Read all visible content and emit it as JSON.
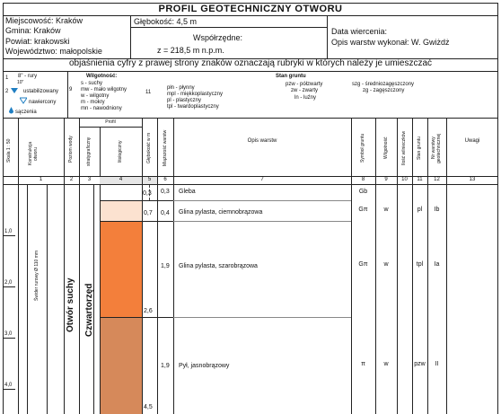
{
  "header": {
    "title": "PROFIL GEOTECHNICZNY OTWORU",
    "location": "Miejscowość: Kraków",
    "municipality": "Gmina: Kraków",
    "district": "Powiat: krakowski",
    "province": "Województwo: małopolskie",
    "depth": "Głębokość: 4,5 m",
    "coords_label": "Współrzędne:",
    "elevation": "z = 218,5 m n.p.m.",
    "date_label": "Data wiercenia:",
    "author": "Opis warstw wykonał: W. Gwiżdż"
  },
  "explanation": {
    "banner": "objaśnienia cyfry z prawej strony znaków oznaczają rubryki w których należy je umieszczać",
    "col1": [
      "1",
      "8\" - rury",
      "10\"",
      "2",
      "ustabilizowany",
      "nawiercony",
      "sączenia"
    ],
    "moisture_title": "Wilgotność:",
    "moisture_num": "9",
    "moisture": [
      "s - suchy",
      "mw - mało wilgotny",
      "w - wilgotny",
      "m - mokry",
      "mn - nawodniony"
    ],
    "state_num": "11",
    "state": [
      "płn - płynny",
      "mpl - miękkoplastyczny",
      "pl - plastyczny",
      "tpl - twardoplastyczny"
    ],
    "soil_state_title": "Stan gruntu",
    "soil_state": [
      "pzw - półzwarty",
      "zw - zwarty",
      "ln - luźny"
    ],
    "density": [
      "szg - średniozagęszczony",
      "zg - zagęszczony"
    ]
  },
  "columns": {
    "scale": "Skala 1 : 50",
    "construction": "Konstrukcja otworu",
    "water": "Poziom wody",
    "profile_group": "Profil",
    "strat": "stratygraficzny",
    "litho": "litologiczny",
    "depth": "Głębokość w m",
    "thickness": "Miąższość warstw",
    "description": "Opis warstw",
    "symbol": "Symbol gruntu",
    "moisture": "Wilgotność",
    "plasticity": "Ilość wilnieczków",
    "state": "Stan gruntu",
    "sample": "Nr warstwy geotechnicznej",
    "remarks": "Uwagi",
    "numbers": [
      "1",
      "2",
      "3",
      "4",
      "5",
      "6",
      "7",
      "8",
      "9",
      "10",
      "11",
      "12",
      "13"
    ]
  },
  "scale_ticks": [
    "1,0",
    "2,0",
    "3,0",
    "4,0"
  ],
  "casing_label": "Świder rurowy Ø 110 mm",
  "hole_label": "Otwór suchy",
  "strat_label": "Czwartorzęd",
  "layers": [
    {
      "depth": "0,3",
      "thickness": "0,3",
      "description": "Gleba",
      "symbol": "Gb",
      "moisture": "",
      "state": "",
      "sample": "",
      "color": "#ffffff"
    },
    {
      "depth": "0,7",
      "thickness": "0,4",
      "description": "Glina pylasta, ciemnobrązowa",
      "symbol": "Gπ",
      "moisture": "w",
      "state": "pl",
      "sample": "Ib",
      "color": "#fce2d0"
    },
    {
      "depth": "2,6",
      "thickness": "1,9",
      "description": "Glina pylasta, szarobrązowa",
      "symbol": "Gπ",
      "moisture": "w",
      "state": "tpl",
      "sample": "Ia",
      "color": "#f37f3b"
    },
    {
      "depth": "4,5",
      "thickness": "1,9",
      "description": "Pył, jasnobrązowy",
      "symbol": "π",
      "moisture": "w",
      "state": "pzw",
      "sample": "II",
      "color": "#d6895a"
    }
  ]
}
